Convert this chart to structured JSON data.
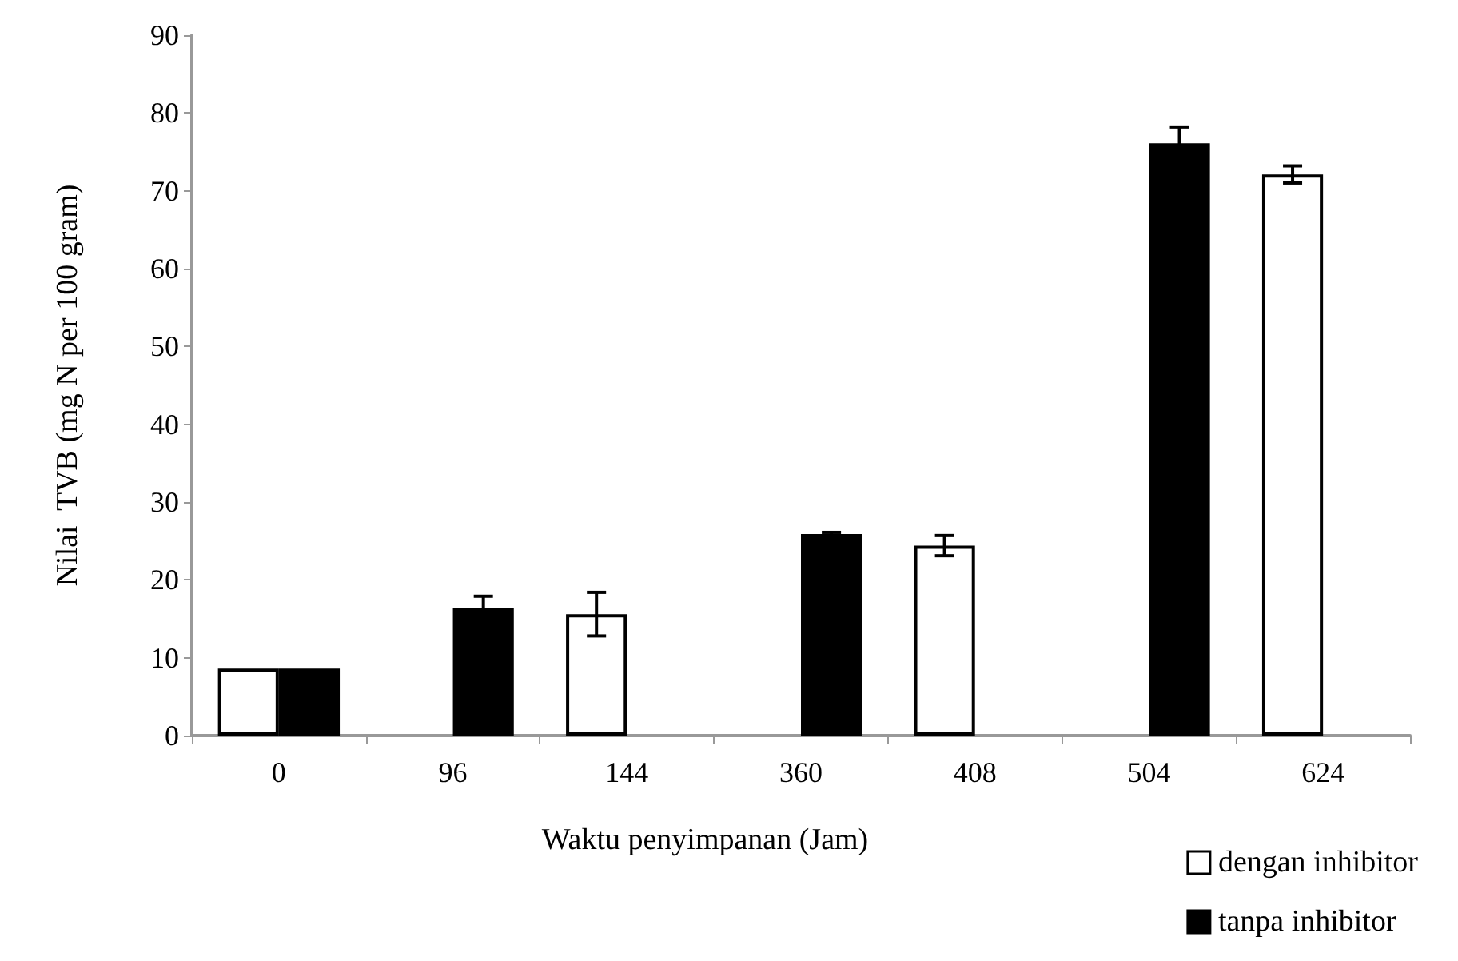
{
  "chart_data": {
    "type": "bar",
    "xlabel": "Waktu penyimpanan (Jam)",
    "ylabel": "Nilai  TVB (mg N per 100 gram)",
    "categories": [
      "0",
      "96",
      "144",
      "360",
      "408",
      "504",
      "624"
    ],
    "series": [
      {
        "name": "dengan inhibitor",
        "color": "#ffffff",
        "values": [
          8.6,
          null,
          15.6,
          null,
          24.4,
          null,
          72.1
        ],
        "errors": [
          null,
          null,
          2.8,
          null,
          1.3,
          null,
          1.1
        ]
      },
      {
        "name": "tanpa inhibitor",
        "color": "#000000",
        "values": [
          8.6,
          16.4,
          null,
          25.9,
          null,
          76.1,
          null
        ],
        "errors": [
          null,
          1.5,
          null,
          0.2,
          null,
          2.1,
          null
        ]
      }
    ],
    "ylim": [
      0,
      90
    ],
    "yticks": [
      0,
      10,
      20,
      30,
      40,
      50,
      60,
      70,
      80,
      90
    ],
    "grid": false,
    "legend": "bottom right"
  }
}
